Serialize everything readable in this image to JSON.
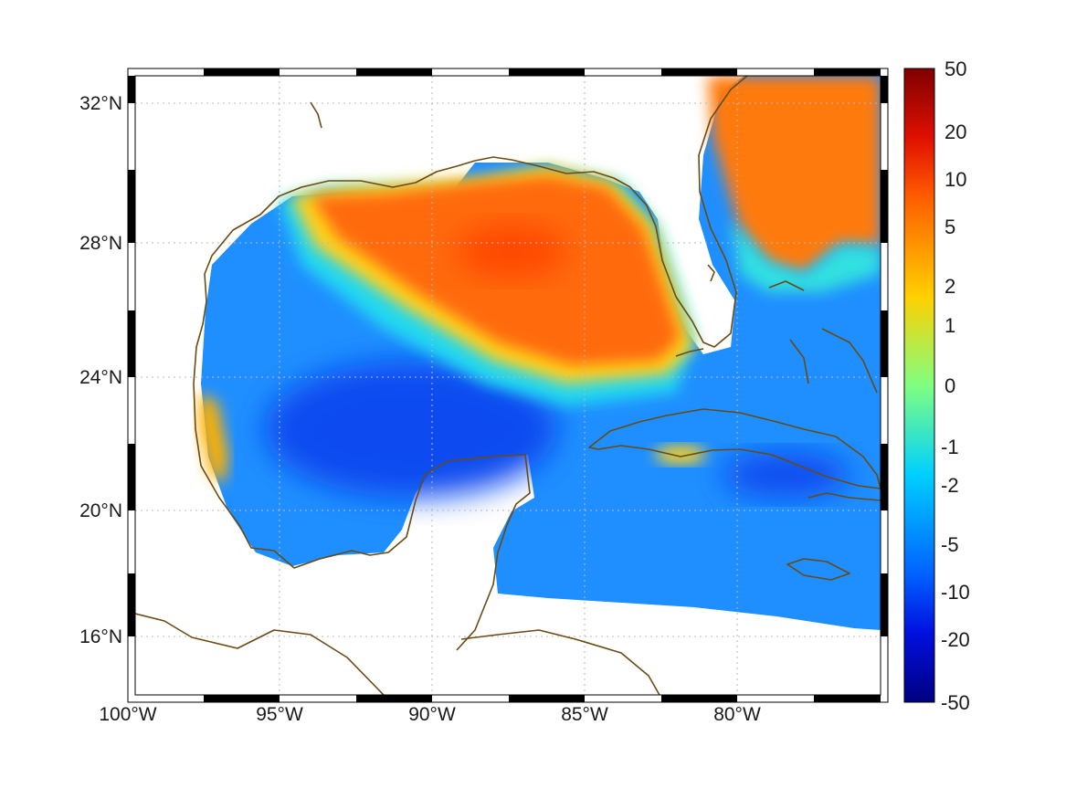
{
  "map": {
    "region": "Gulf of Mexico and Caribbean",
    "longitude_labels": [
      "100°W",
      "95°W",
      "90°W",
      "85°W",
      "80°W"
    ],
    "latitude_labels": [
      "32°N",
      "28°N",
      "24°N",
      "20°N",
      "16°N"
    ],
    "lon_range": [
      -100,
      -75
    ],
    "lat_range": [
      14.2,
      32.8
    ],
    "grid": "dotted",
    "coastline_color": "#6b4a12"
  },
  "colorbar": {
    "ticks": [
      "50",
      "20",
      "10",
      "5",
      "2",
      "1",
      "0",
      "-1",
      "-2",
      "-5",
      "-10",
      "-20",
      "-50"
    ],
    "colormap": "jet",
    "range": [
      -50,
      50
    ],
    "position": "right"
  },
  "field_summary": {
    "high_regions": [
      "north-central Gulf",
      "Atlantic off southeast US coast",
      "western Gulf near Tamaulipas coast"
    ],
    "low_regions": [
      "central and southern Gulf",
      "Caribbean south of Cuba"
    ]
  }
}
